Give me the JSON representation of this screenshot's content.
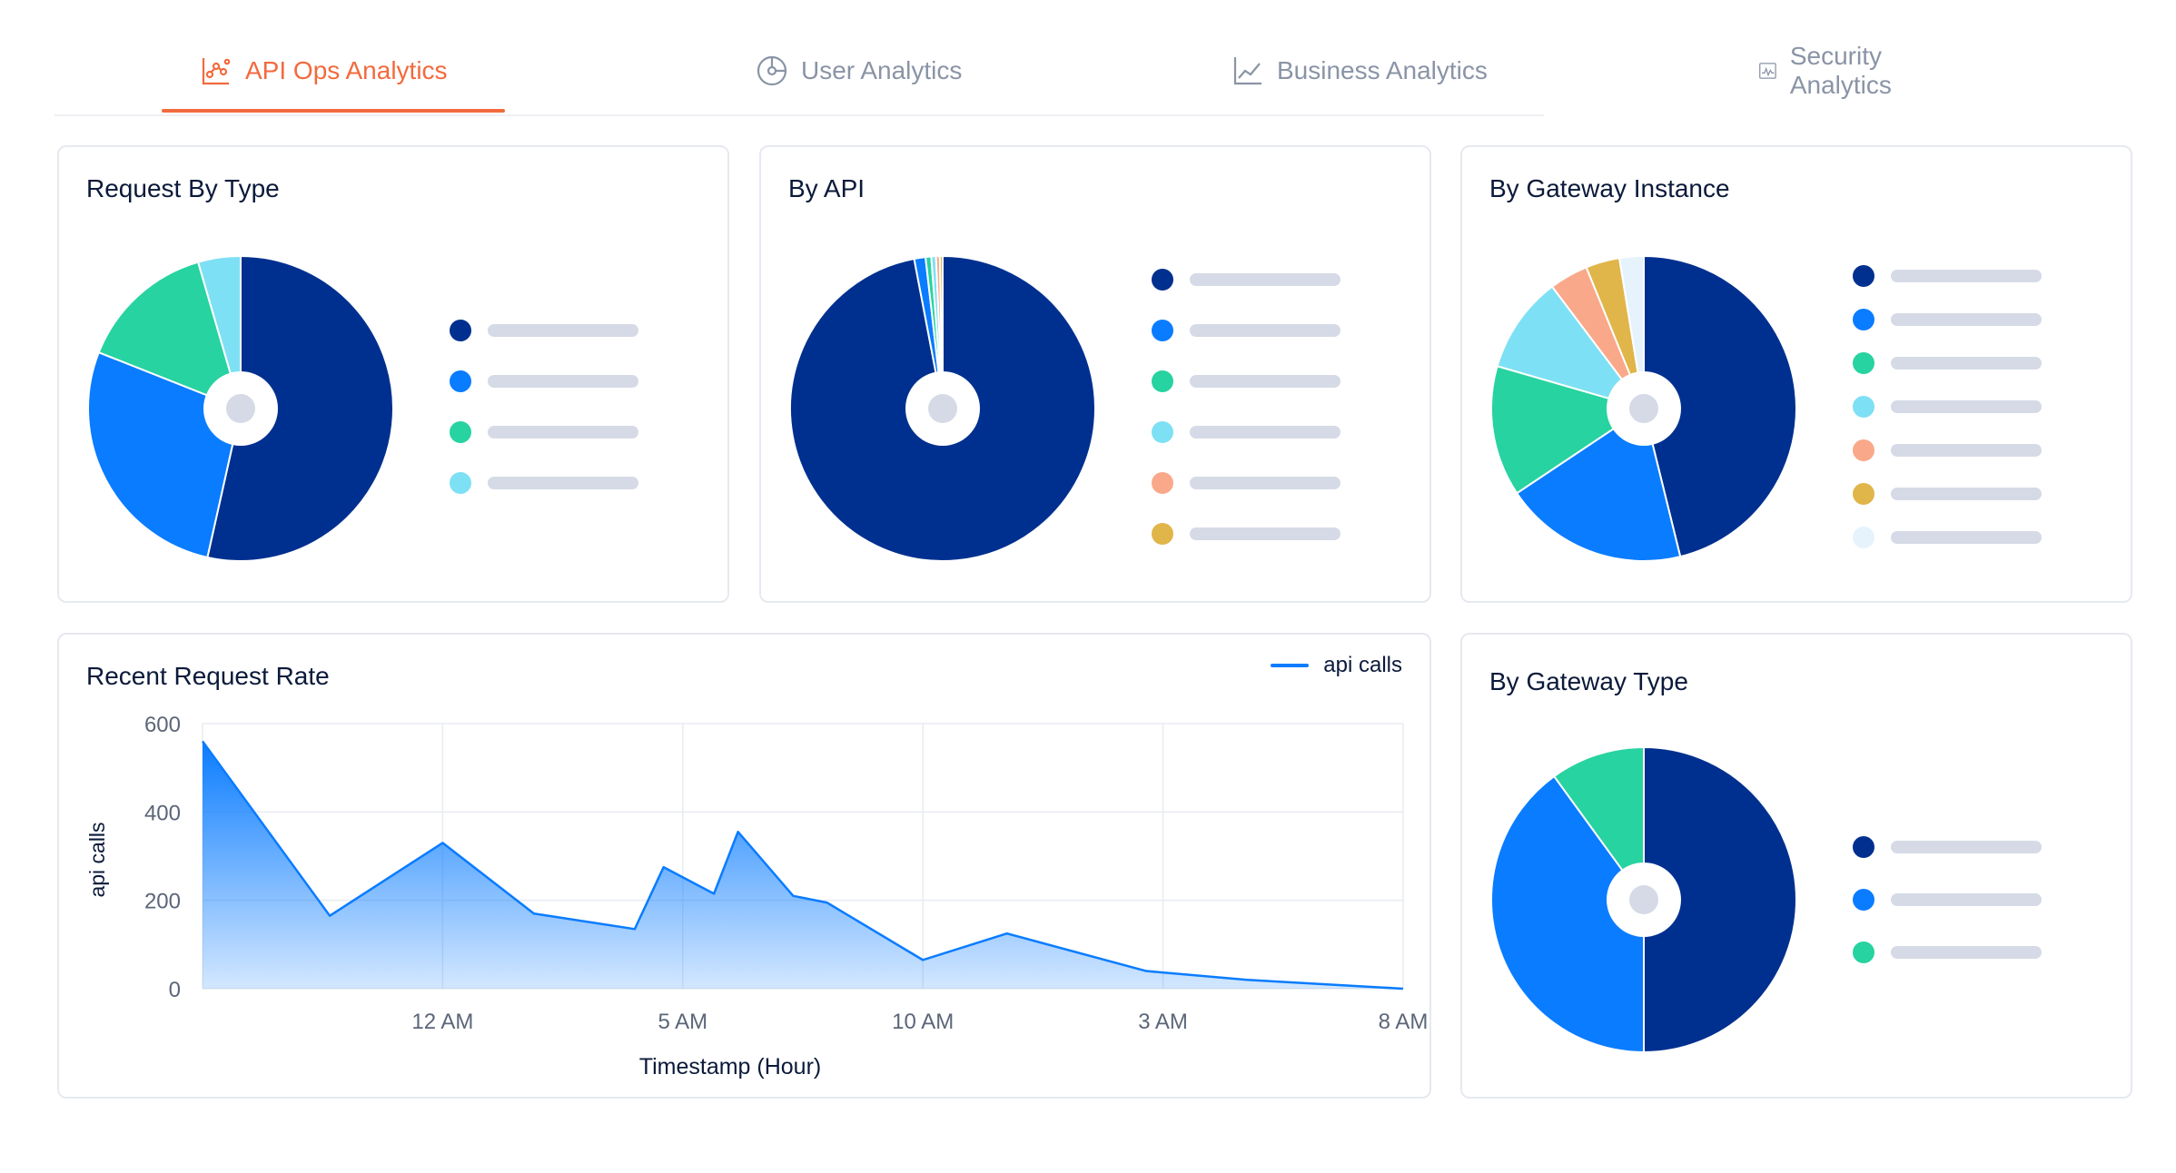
{
  "tabs": [
    {
      "label": "API Ops Analytics",
      "icon": "chart-scatter-icon",
      "active": true
    },
    {
      "label": "User Analytics",
      "icon": "pie-clock-icon",
      "active": false
    },
    {
      "label": "Business Analytics",
      "icon": "line-chart-icon",
      "active": false
    },
    {
      "label": "Security Analytics",
      "icon": "pulse-monitor-icon",
      "active": false
    }
  ],
  "cards": {
    "request_by_type": {
      "title": "Request By Type"
    },
    "by_api": {
      "title": "By API"
    },
    "by_gateway_instance": {
      "title": "By Gateway Instance"
    },
    "recent_request_rate": {
      "title": "Recent Request Rate",
      "legend": "api calls"
    },
    "by_gateway_type": {
      "title": "By Gateway Type"
    }
  },
  "colors": {
    "accent": "#f26a3d",
    "navy": "#00308f",
    "blue": "#0a7cff",
    "green": "#27d3a0",
    "cyan": "#7ee0f4",
    "salmon": "#f9a98a",
    "mustard": "#e0b54a",
    "pale": "#e6f3fd"
  },
  "chart_data": [
    {
      "type": "pie",
      "name": "request_by_type",
      "values": [
        53.5,
        27.5,
        14.5,
        4.5
      ],
      "colors": [
        "#00308f",
        "#0a7cff",
        "#27d3a0",
        "#7ee0f4"
      ]
    },
    {
      "type": "pie",
      "name": "by_api",
      "values": [
        97.0,
        1.2,
        0.6,
        0.5,
        0.4,
        0.3
      ],
      "colors": [
        "#00308f",
        "#0a7cff",
        "#27d3a0",
        "#7ee0f4",
        "#f9a98a",
        "#e0b54a"
      ]
    },
    {
      "type": "pie",
      "name": "by_gateway_instance",
      "values": [
        45.0,
        19.0,
        13.5,
        10.0,
        4.0,
        3.5,
        2.5
      ],
      "colors": [
        "#00308f",
        "#0a7cff",
        "#27d3a0",
        "#7ee0f4",
        "#f9a98a",
        "#e0b54a",
        "#e6f3fd"
      ]
    },
    {
      "type": "area",
      "name": "recent_request_rate",
      "xlabel": "Timestamp (Hour)",
      "ylabel": "api calls",
      "ylim": [
        0,
        600
      ],
      "yticks": [
        "0",
        "200",
        "400",
        "600"
      ],
      "xticks": [
        "12 AM",
        "5 AM",
        "10 AM",
        "3 AM",
        "8 AM"
      ],
      "xticks_at": [
        10,
        20,
        30,
        40,
        50
      ],
      "xlim": [
        0,
        50
      ],
      "series": [
        {
          "name": "api calls",
          "x": [
            0,
            5.3,
            10,
            13.8,
            18,
            19.2,
            21.3,
            22.3,
            24.6,
            26,
            30,
            33.5,
            39.3,
            43.5,
            50
          ],
          "y": [
            560,
            165,
            330,
            170,
            135,
            275,
            215,
            355,
            210,
            195,
            65,
            125,
            40,
            20,
            0
          ]
        }
      ]
    },
    {
      "type": "pie",
      "name": "by_gateway_type",
      "values": [
        50.0,
        40.0,
        10.0
      ],
      "colors": [
        "#00308f",
        "#0a7cff",
        "#27d3a0"
      ]
    }
  ]
}
